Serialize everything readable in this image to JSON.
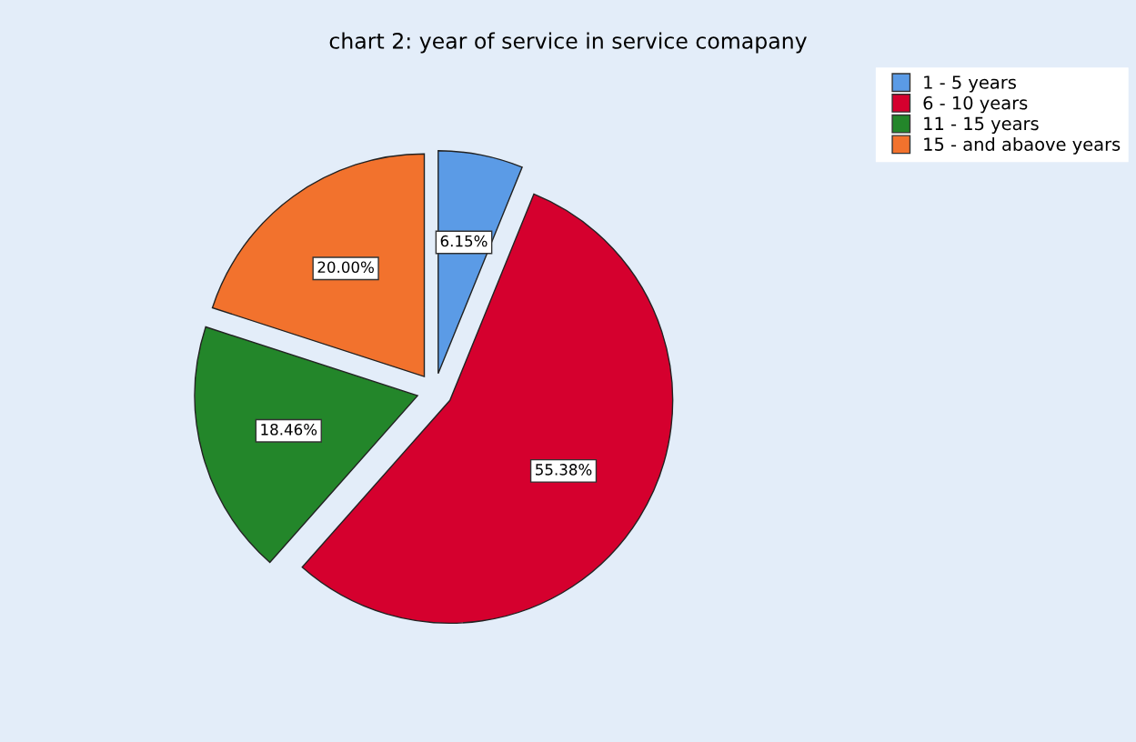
{
  "chart_data": {
    "type": "pie",
    "title": "chart 2: year of service in service comapany",
    "categories": [
      "1 - 5 years",
      "6 - 10 years",
      "11 - 15 years",
      "15 - and abaove years"
    ],
    "values": [
      6.15,
      55.38,
      18.46,
      20.0
    ],
    "value_labels": [
      "6.15%",
      "55.38%",
      "18.46%",
      "20.00%"
    ],
    "colors": [
      "#5b9be6",
      "#d5002e",
      "#23862a",
      "#f2722d"
    ],
    "legend": "top right"
  }
}
